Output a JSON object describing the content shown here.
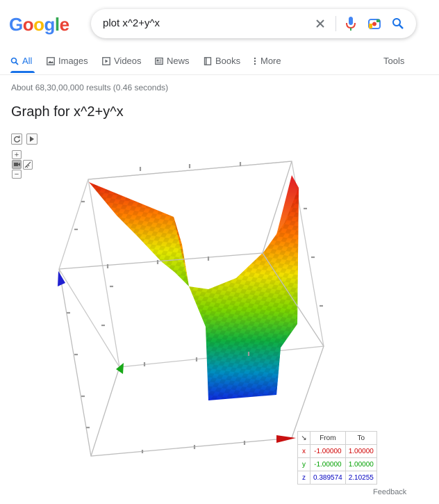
{
  "logo": {
    "letters": [
      "G",
      "o",
      "o",
      "g",
      "l",
      "e"
    ],
    "colors": [
      "#4285f4",
      "#ea4335",
      "#fbbc05",
      "#4285f4",
      "#34a853",
      "#ea4335"
    ]
  },
  "search": {
    "query": "plot x^2+y^x",
    "icons": [
      "clear-icon",
      "microphone-icon",
      "camera-icon",
      "search-icon"
    ]
  },
  "tabs": [
    {
      "label": "All",
      "icon": "search-icon"
    },
    {
      "label": "Images",
      "icon": "image-icon"
    },
    {
      "label": "Videos",
      "icon": "video-icon"
    },
    {
      "label": "News",
      "icon": "news-icon"
    },
    {
      "label": "Books",
      "icon": "book-icon"
    },
    {
      "label": "More",
      "icon": "more-icon"
    }
  ],
  "tools_label": "Tools",
  "stats": "About 68,30,00,000 results (0.46 seconds)",
  "graph": {
    "title": "Graph for x^2+y^x",
    "controls": [
      "reset-icon",
      "play-icon",
      "zoom-in-icon",
      "zoom-out-icon",
      "camera-toggle-icon",
      "ruler-icon"
    ],
    "range": {
      "header_from": "From",
      "header_to": "To",
      "rows": [
        {
          "var": "x",
          "from": "-1.00000",
          "to": "1.00000",
          "color": "#d00000"
        },
        {
          "var": "y",
          "from": "-1.00000",
          "to": "1.00000",
          "color": "#00a000"
        },
        {
          "var": "z",
          "from": "0.389574",
          "to": "2.10255",
          "color": "#0000c0"
        }
      ]
    }
  },
  "feedback": "Feedback"
}
